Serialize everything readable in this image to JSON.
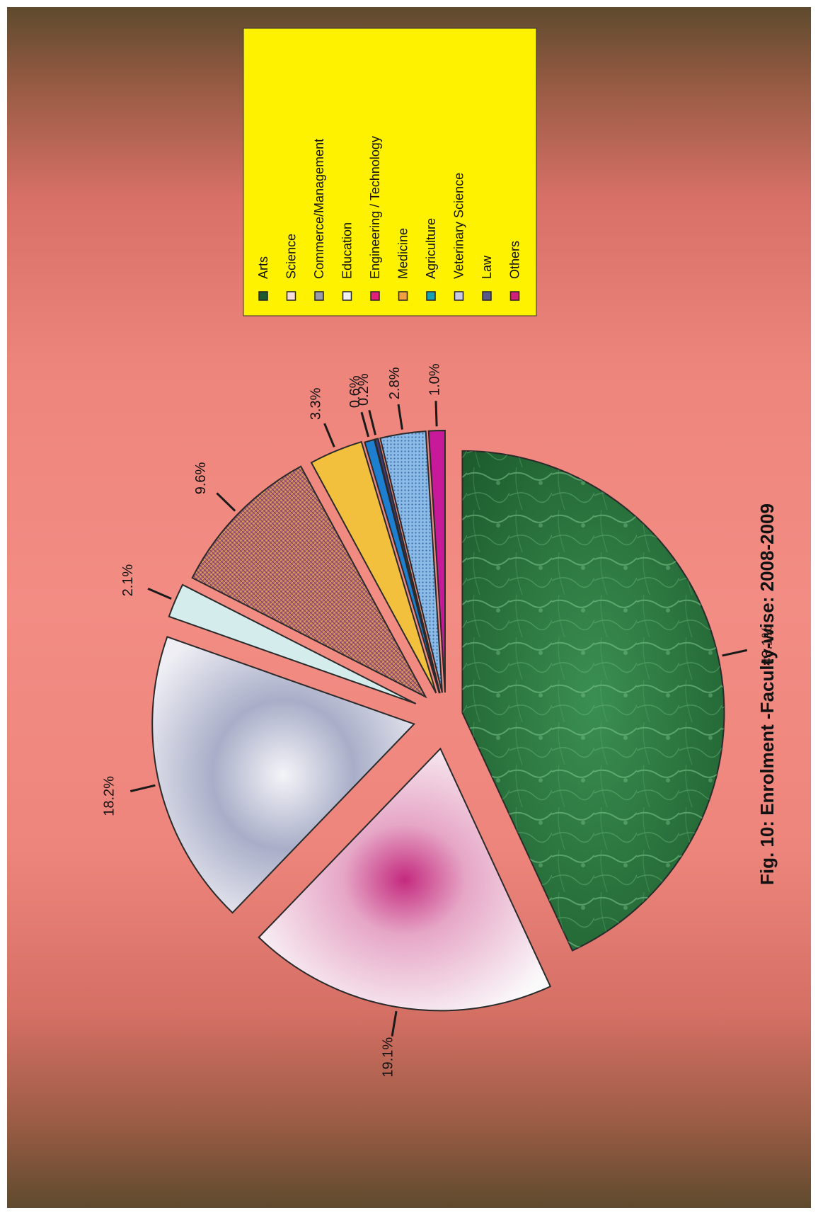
{
  "chart_data": {
    "type": "pie",
    "title": "Fig. 10: Enrolment -Faculty-wise: 2008-2009",
    "legend_placement": "top-right",
    "labels": [
      "Arts",
      "Science",
      "Commerce/Management",
      "Education",
      "Engineering / Technology",
      "Medicine",
      "Agriculture",
      "Veterinary Science",
      "Law",
      "Others"
    ],
    "values": [
      43.1,
      19.1,
      18.2,
      2.1,
      9.6,
      3.3,
      0.6,
      0.2,
      2.8,
      1.0
    ],
    "value_labels": [
      "43.1%",
      "19.1%",
      "18.2%",
      "2.1%",
      "9.6%",
      "3.3%",
      "0.6%",
      "0.2%",
      "2.8%",
      "1.0%"
    ],
    "colors": [
      "#2c7a40",
      "#c42a7e",
      "#8e96b8",
      "#d4ecec",
      "#c48a5e",
      "#f2c03c",
      "#1e7fd0",
      "#3c3c7a",
      "#7fb0e2",
      "#c8199a"
    ],
    "legend_swatch_colors": [
      "#1d5a2e",
      "#f4dcd8",
      "#9a9aa8",
      "#f0f0f0",
      "#e0207a",
      "#f0a040",
      "#1aa0b4",
      "#c8c8e0",
      "#5a5a8a",
      "#d0207a"
    ],
    "background": {
      "outer": "#5e4a2e",
      "inner": "#f08a82",
      "legend_box": "#fff200"
    }
  }
}
